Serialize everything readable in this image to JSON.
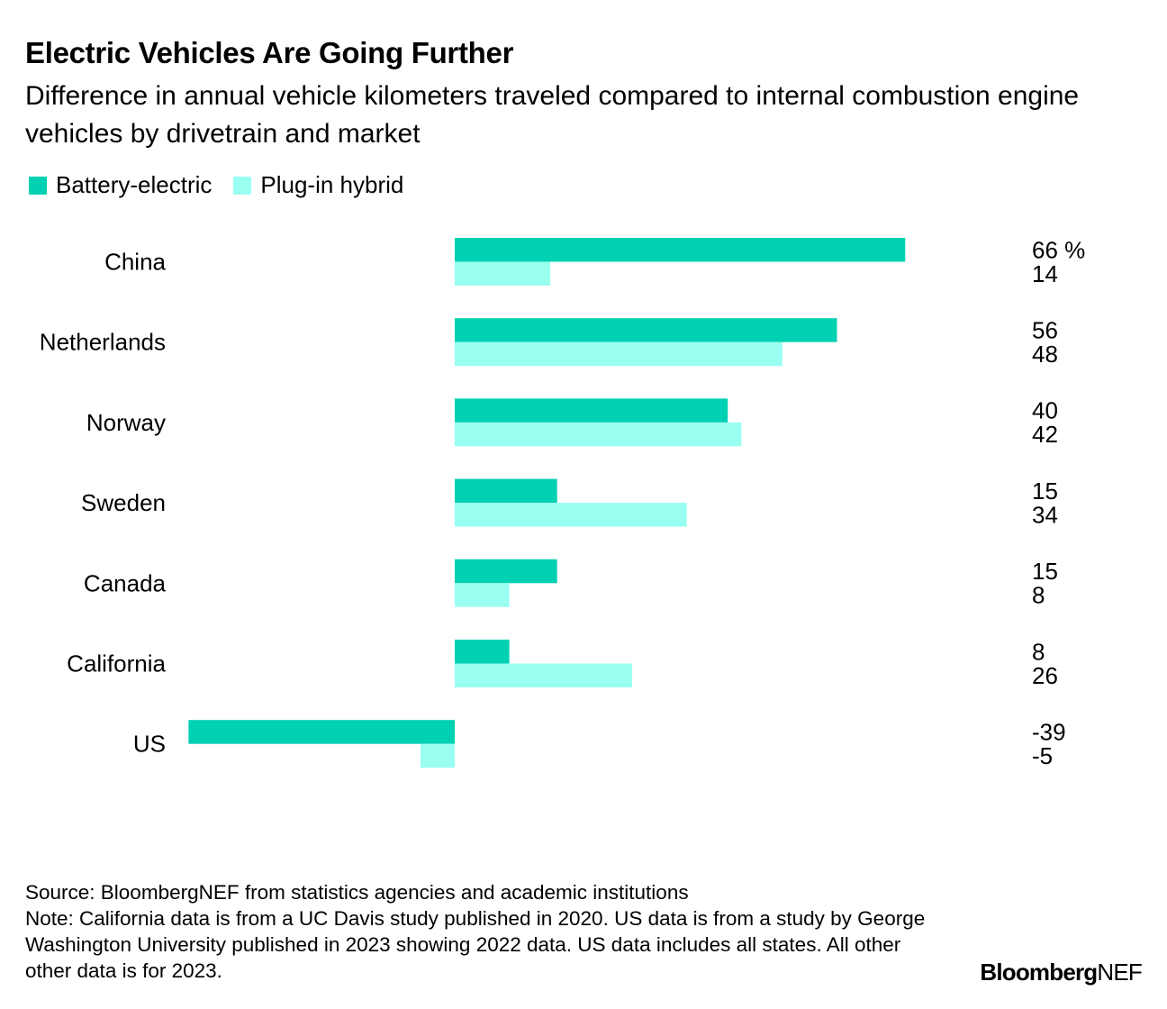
{
  "header": {
    "title": "Electric Vehicles Are Going Further",
    "subtitle": "Difference in annual vehicle kilometers traveled compared to internal combustion engine vehicles by drivetrain and market"
  },
  "legend": [
    {
      "label": "Battery-electric",
      "color": "#00d1b2"
    },
    {
      "label": "Plug-in hybrid",
      "color": "#99fff0"
    }
  ],
  "chart_data": {
    "type": "bar",
    "orientation": "horizontal",
    "categories": [
      "China",
      "Netherlands",
      "Norway",
      "Sweden",
      "Canada",
      "California",
      "US"
    ],
    "series": [
      {
        "name": "Battery-electric",
        "color": "#00d1b2",
        "values": [
          66,
          56,
          40,
          15,
          15,
          8,
          -39
        ],
        "labels": [
          "66 %",
          "56",
          "40",
          "15",
          "15",
          "8",
          "-39"
        ]
      },
      {
        "name": "Plug-in hybrid",
        "color": "#99fff0",
        "values": [
          14,
          48,
          42,
          34,
          8,
          26,
          -5
        ],
        "labels": [
          "14",
          "48",
          "42",
          "34",
          "8",
          "26",
          "-5"
        ]
      }
    ],
    "xlim": [
      -40,
      70
    ],
    "grid": false,
    "legend_position": "top-left"
  },
  "footer": {
    "source": "Source: BloombergNEF from statistics agencies and academic institutions",
    "note": "Note: California data is from a UC Davis study published in 2020. US data is from a study by George Washington University published in 2023 showing 2022 data. US data includes all states. All other other data is for 2023."
  },
  "logo": {
    "brand": "Bloomberg",
    "suffix": "NEF"
  }
}
